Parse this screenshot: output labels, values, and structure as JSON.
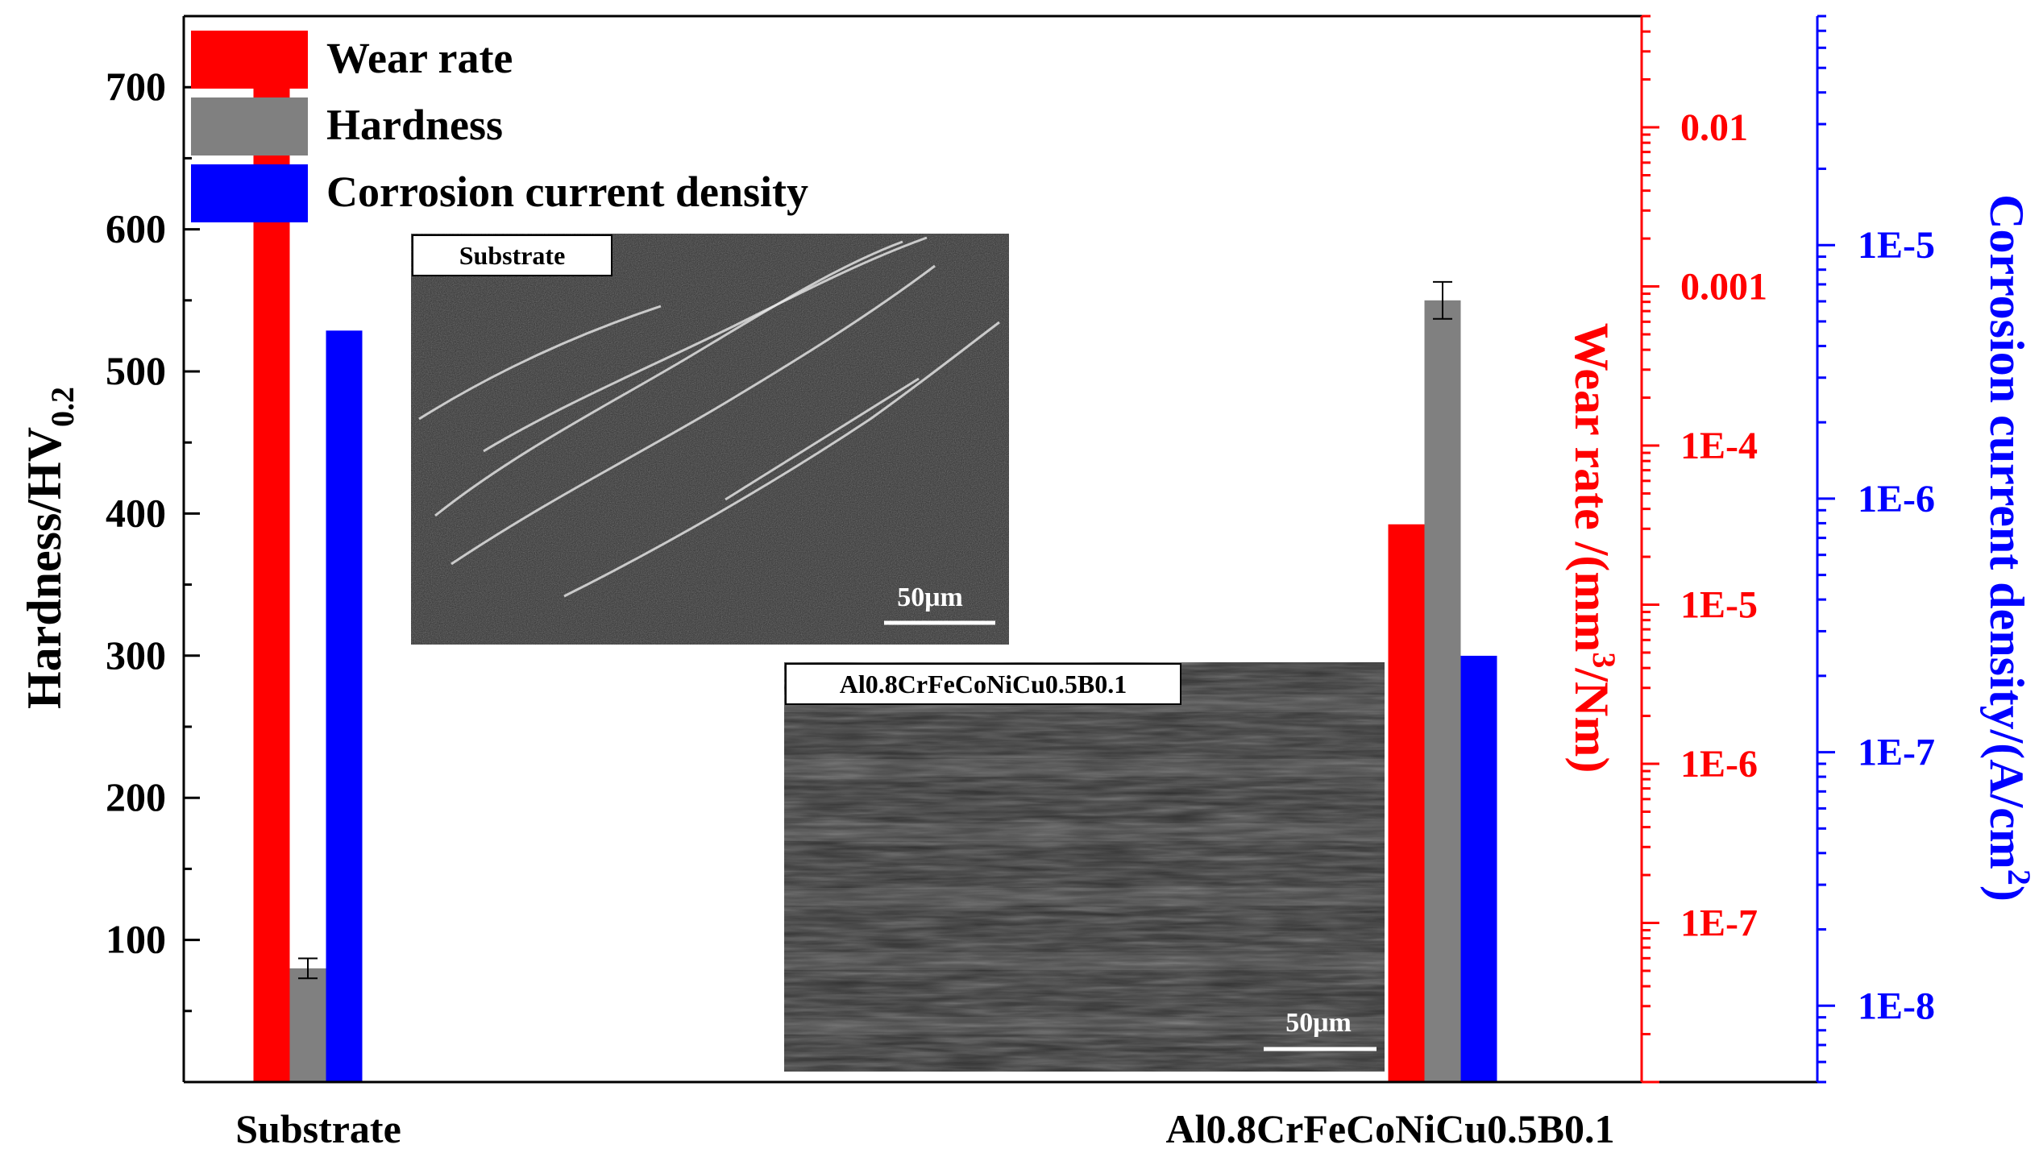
{
  "chart_data": {
    "type": "bar",
    "categories": [
      "Substrate",
      "Al0.8CrFeCoNiCu0.5B0.1"
    ],
    "legend": [
      {
        "label": "Wear rate",
        "color": "#ff0000"
      },
      {
        "label": "Hardness",
        "color": "#808080"
      },
      {
        "label": "Corrosion current density",
        "color": "#0000ff"
      }
    ],
    "series": [
      {
        "name": "Wear rate",
        "axis": "wear",
        "color": "#ff0000",
        "values": [
          0.018,
          3.2e-05
        ]
      },
      {
        "name": "Hardness",
        "axis": "hardness",
        "color": "#808080",
        "values": [
          80,
          550
        ],
        "errors": [
          7,
          13
        ]
      },
      {
        "name": "Corrosion current density",
        "axis": "corrosion",
        "color": "#0000ff",
        "values": [
          4.6e-06,
          2.4e-07
        ]
      }
    ],
    "axes": {
      "hardness": {
        "label_main": "Hardness/HV",
        "label_sub": "0.2",
        "ylim": [
          0,
          750
        ],
        "ticks": [
          100,
          200,
          300,
          400,
          500,
          600,
          700
        ],
        "tick_labels": [
          "100",
          "200",
          "300",
          "400",
          "500",
          "600",
          "700"
        ],
        "color": "#000000"
      },
      "wear": {
        "label_pre": "Wear rate /(mm",
        "label_sup": "3",
        "label_post": "/Nm)",
        "scale": "log",
        "ylim": [
          1e-08,
          0.05
        ],
        "ticks": [
          1e-07,
          1e-06,
          1e-05,
          0.0001,
          0.001,
          0.01
        ],
        "tick_labels": [
          "1E-7",
          "1E-6",
          "1E-5",
          "1E-4",
          "0.001",
          "0.01"
        ],
        "color": "#ff0000"
      },
      "corrosion": {
        "label_pre": "Corrosion current density/(A/cm",
        "label_sup": "2",
        "label_post": ")",
        "scale": "log",
        "ylim": [
          5e-09,
          8e-05
        ],
        "ticks": [
          1e-08,
          1e-07,
          1e-06,
          1e-05
        ],
        "tick_labels": [
          "1E-8",
          "1E-7",
          "1E-6",
          "1E-5"
        ],
        "color": "#0000ff"
      }
    },
    "insets": [
      {
        "label": "Substrate",
        "scale_bar": "50μm",
        "image": "SEM worn surface micrograph"
      },
      {
        "label": "Al0.8CrFeCoNiCu0.5B0.1",
        "scale_bar": "50μm",
        "image": "SEM worn surface micrograph"
      }
    ]
  }
}
